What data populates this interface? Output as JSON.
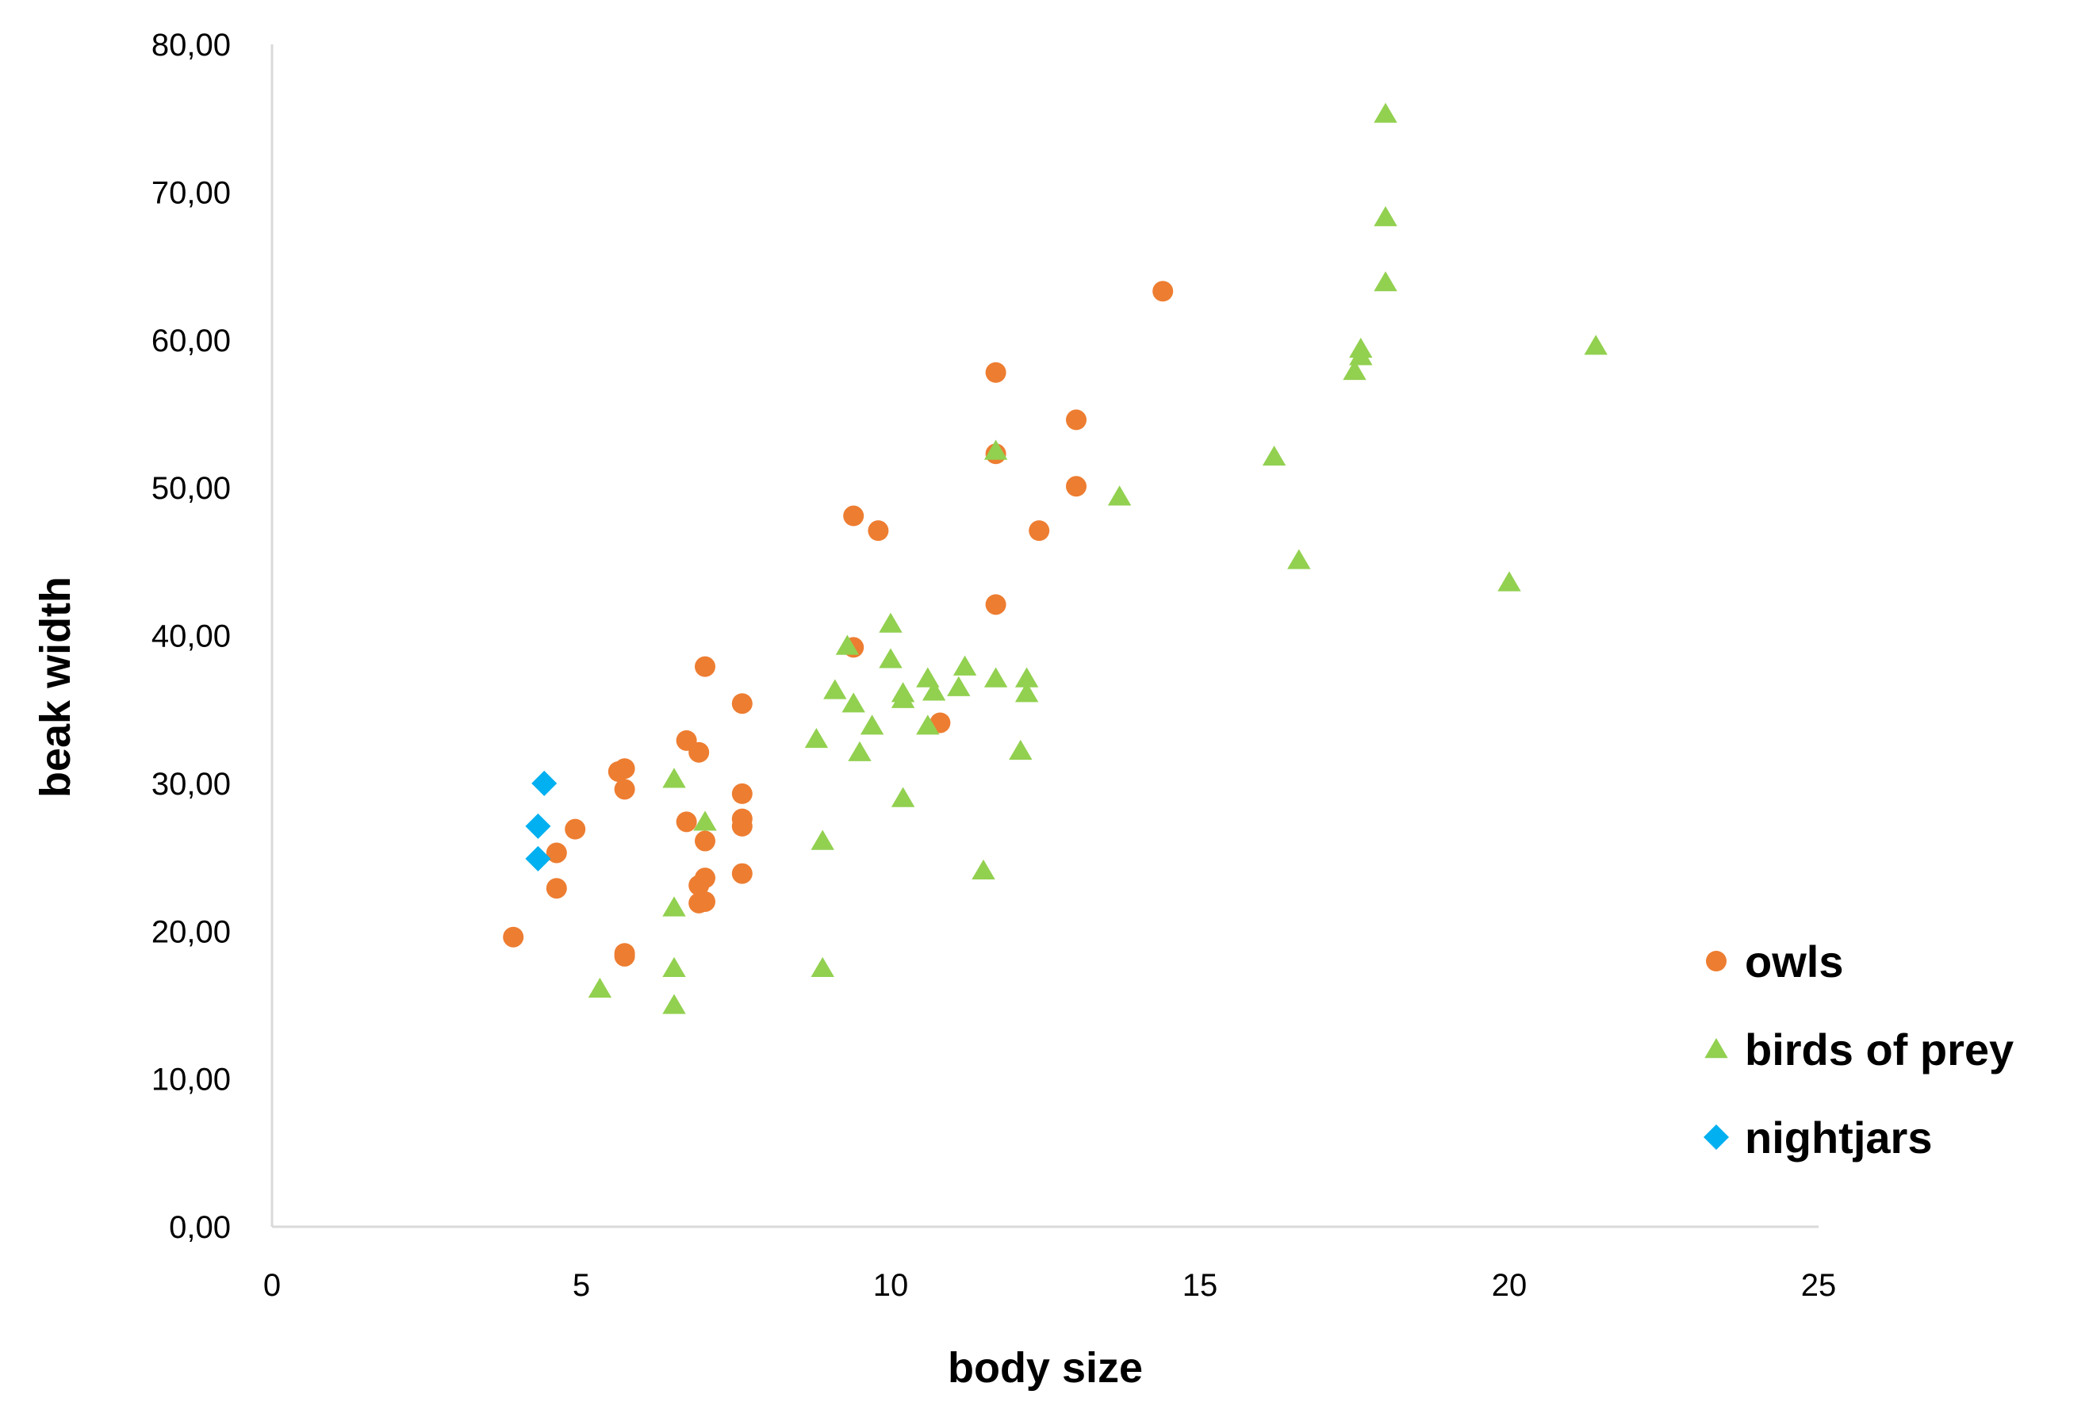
{
  "chart_data": {
    "type": "scatter",
    "title": "",
    "xlabel": "body size",
    "ylabel": "beak width",
    "xlim": [
      0,
      25
    ],
    "ylim": [
      0,
      80
    ],
    "x_ticks": [
      0,
      5,
      10,
      15,
      20,
      25
    ],
    "x_tick_labels": [
      "0",
      "5",
      "10",
      "15",
      "20",
      "25"
    ],
    "y_ticks": [
      0,
      10,
      20,
      30,
      40,
      50,
      60,
      70,
      80
    ],
    "y_tick_labels": [
      "0,00",
      "10,00",
      "20,00",
      "30,00",
      "40,00",
      "50,00",
      "60,00",
      "70,00",
      "80,00"
    ],
    "grid": false,
    "legend_position": "bottom-right",
    "series": [
      {
        "name": "owls",
        "color": "#ED7D31",
        "marker": "circle",
        "points": [
          [
            3.9,
            19.6
          ],
          [
            4.6,
            25.3
          ],
          [
            4.6,
            22.9
          ],
          [
            4.9,
            26.9
          ],
          [
            5.6,
            30.8
          ],
          [
            5.7,
            31.0
          ],
          [
            5.7,
            29.6
          ],
          [
            5.7,
            18.5
          ],
          [
            5.7,
            18.3
          ],
          [
            6.7,
            32.9
          ],
          [
            6.7,
            27.4
          ],
          [
            6.9,
            32.1
          ],
          [
            6.9,
            23.1
          ],
          [
            6.9,
            21.9
          ],
          [
            7.0,
            37.9
          ],
          [
            7.0,
            26.1
          ],
          [
            7.0,
            23.6
          ],
          [
            7.0,
            22.0
          ],
          [
            7.6,
            35.4
          ],
          [
            7.6,
            29.3
          ],
          [
            7.6,
            27.6
          ],
          [
            7.6,
            27.1
          ],
          [
            7.6,
            23.9
          ],
          [
            9.4,
            48.1
          ],
          [
            9.4,
            39.2
          ],
          [
            9.8,
            47.1
          ],
          [
            10.8,
            34.1
          ],
          [
            11.7,
            57.8
          ],
          [
            11.7,
            52.3
          ],
          [
            11.7,
            42.1
          ],
          [
            12.4,
            47.1
          ],
          [
            13.0,
            54.6
          ],
          [
            13.0,
            50.1
          ],
          [
            14.4,
            63.3
          ]
        ]
      },
      {
        "name": "birds of prey",
        "color": "#92D050",
        "marker": "triangle",
        "points": [
          [
            5.3,
            16.1
          ],
          [
            6.5,
            30.3
          ],
          [
            6.5,
            21.6
          ],
          [
            6.5,
            17.5
          ],
          [
            6.5,
            15.0
          ],
          [
            7.0,
            27.4
          ],
          [
            8.8,
            33.0
          ],
          [
            8.9,
            26.1
          ],
          [
            8.9,
            17.5
          ],
          [
            9.1,
            36.3
          ],
          [
            9.3,
            39.3
          ],
          [
            9.4,
            35.4
          ],
          [
            9.5,
            32.1
          ],
          [
            9.7,
            33.9
          ],
          [
            10.0,
            40.8
          ],
          [
            10.0,
            38.4
          ],
          [
            10.2,
            36.1
          ],
          [
            10.2,
            35.7
          ],
          [
            10.2,
            29.0
          ],
          [
            10.6,
            37.1
          ],
          [
            10.6,
            33.9
          ],
          [
            10.7,
            36.2
          ],
          [
            11.1,
            36.5
          ],
          [
            11.2,
            37.9
          ],
          [
            11.5,
            24.1
          ],
          [
            11.7,
            52.5
          ],
          [
            11.7,
            37.1
          ],
          [
            12.1,
            32.2
          ],
          [
            12.2,
            37.1
          ],
          [
            12.2,
            36.1
          ],
          [
            13.7,
            49.4
          ],
          [
            16.2,
            52.1
          ],
          [
            16.6,
            45.1
          ],
          [
            17.5,
            57.9
          ],
          [
            17.6,
            59.4
          ],
          [
            17.6,
            58.9
          ],
          [
            18.0,
            75.3
          ],
          [
            18.0,
            68.3
          ],
          [
            18.0,
            63.9
          ],
          [
            20.0,
            43.6
          ],
          [
            21.4,
            59.6
          ]
        ]
      },
      {
        "name": "nightjars",
        "color": "#00B0F0",
        "marker": "diamond",
        "points": [
          [
            4.4,
            30.0
          ],
          [
            4.3,
            27.1
          ],
          [
            4.3,
            24.9
          ]
        ]
      }
    ]
  }
}
